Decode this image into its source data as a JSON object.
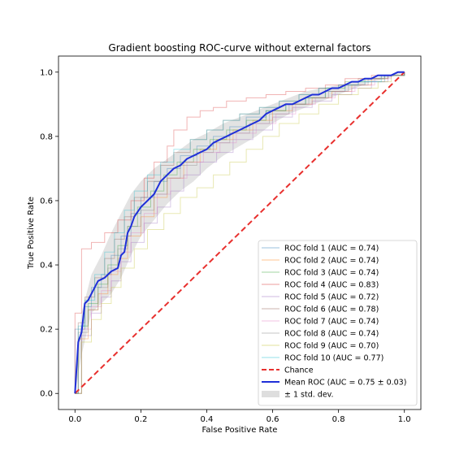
{
  "chart_data": {
    "type": "line",
    "title": "Gradient boosting ROC-curve without external factors",
    "xlabel": "False Positive Rate",
    "ylabel": "True Positive Rate",
    "xlim": [
      -0.05,
      1.05
    ],
    "ylim": [
      -0.05,
      1.05
    ],
    "xticks": [
      "0.0",
      "0.2",
      "0.4",
      "0.6",
      "0.8",
      "1.0"
    ],
    "yticks": [
      "0.0",
      "0.2",
      "0.4",
      "0.6",
      "0.8",
      "1.0"
    ],
    "grid": false,
    "legend_position": "lower-right",
    "folds": [
      {
        "name": "ROC fold 1 (AUC = 0.74)",
        "color": "#1f77b4",
        "points": [
          [
            0,
            0
          ],
          [
            0,
            0.2
          ],
          [
            0.03,
            0.27
          ],
          [
            0.05,
            0.33
          ],
          [
            0.08,
            0.37
          ],
          [
            0.11,
            0.43
          ],
          [
            0.14,
            0.49
          ],
          [
            0.17,
            0.56
          ],
          [
            0.2,
            0.61
          ],
          [
            0.24,
            0.66
          ],
          [
            0.28,
            0.7
          ],
          [
            0.32,
            0.74
          ],
          [
            0.37,
            0.77
          ],
          [
            0.42,
            0.8
          ],
          [
            0.47,
            0.83
          ],
          [
            0.52,
            0.86
          ],
          [
            0.58,
            0.88
          ],
          [
            0.64,
            0.9
          ],
          [
            0.7,
            0.92
          ],
          [
            0.76,
            0.94
          ],
          [
            0.82,
            0.96
          ],
          [
            0.88,
            0.97
          ],
          [
            0.94,
            0.99
          ],
          [
            1,
            1
          ]
        ]
      },
      {
        "name": "ROC fold 2 (AUC = 0.74)",
        "color": "#ff7f0e",
        "points": [
          [
            0,
            0
          ],
          [
            0.01,
            0.17
          ],
          [
            0.04,
            0.26
          ],
          [
            0.07,
            0.31
          ],
          [
            0.1,
            0.37
          ],
          [
            0.13,
            0.42
          ],
          [
            0.16,
            0.49
          ],
          [
            0.2,
            0.55
          ],
          [
            0.24,
            0.61
          ],
          [
            0.28,
            0.67
          ],
          [
            0.33,
            0.72
          ],
          [
            0.38,
            0.76
          ],
          [
            0.43,
            0.79
          ],
          [
            0.48,
            0.82
          ],
          [
            0.54,
            0.85
          ],
          [
            0.6,
            0.88
          ],
          [
            0.66,
            0.9
          ],
          [
            0.72,
            0.92
          ],
          [
            0.78,
            0.94
          ],
          [
            0.84,
            0.96
          ],
          [
            0.9,
            0.98
          ],
          [
            0.95,
            0.99
          ],
          [
            1,
            1
          ]
        ]
      },
      {
        "name": "ROC fold 3 (AUC = 0.74)",
        "color": "#2ca02c",
        "points": [
          [
            0,
            0
          ],
          [
            0.02,
            0.21
          ],
          [
            0.04,
            0.28
          ],
          [
            0.07,
            0.34
          ],
          [
            0.1,
            0.4
          ],
          [
            0.13,
            0.46
          ],
          [
            0.16,
            0.52
          ],
          [
            0.19,
            0.58
          ],
          [
            0.23,
            0.63
          ],
          [
            0.27,
            0.68
          ],
          [
            0.31,
            0.72
          ],
          [
            0.36,
            0.76
          ],
          [
            0.41,
            0.79
          ],
          [
            0.46,
            0.82
          ],
          [
            0.52,
            0.85
          ],
          [
            0.58,
            0.88
          ],
          [
            0.64,
            0.9
          ],
          [
            0.7,
            0.92
          ],
          [
            0.76,
            0.95
          ],
          [
            0.82,
            0.97
          ],
          [
            0.88,
            0.98
          ],
          [
            0.94,
            0.99
          ],
          [
            1,
            1
          ]
        ]
      },
      {
        "name": "ROC fold 4 (AUC = 0.83)",
        "color": "#d62728",
        "points": [
          [
            0,
            0
          ],
          [
            0,
            0.25
          ],
          [
            0.02,
            0.45
          ],
          [
            0.05,
            0.47
          ],
          [
            0.09,
            0.5
          ],
          [
            0.13,
            0.54
          ],
          [
            0.17,
            0.6
          ],
          [
            0.21,
            0.67
          ],
          [
            0.24,
            0.72
          ],
          [
            0.28,
            0.77
          ],
          [
            0.3,
            0.82
          ],
          [
            0.34,
            0.86
          ],
          [
            0.38,
            0.88
          ],
          [
            0.42,
            0.89
          ],
          [
            0.46,
            0.91
          ],
          [
            0.52,
            0.92
          ],
          [
            0.58,
            0.93
          ],
          [
            0.64,
            0.94
          ],
          [
            0.7,
            0.95
          ],
          [
            0.76,
            0.96
          ],
          [
            0.82,
            0.98
          ],
          [
            0.9,
            0.99
          ],
          [
            1,
            1
          ]
        ]
      },
      {
        "name": "ROC fold 5 (AUC = 0.72)",
        "color": "#9467bd",
        "points": [
          [
            0,
            0
          ],
          [
            0.02,
            0.18
          ],
          [
            0.05,
            0.25
          ],
          [
            0.08,
            0.3
          ],
          [
            0.11,
            0.35
          ],
          [
            0.14,
            0.41
          ],
          [
            0.17,
            0.47
          ],
          [
            0.21,
            0.53
          ],
          [
            0.25,
            0.58
          ],
          [
            0.29,
            0.63
          ],
          [
            0.33,
            0.68
          ],
          [
            0.38,
            0.72
          ],
          [
            0.43,
            0.75
          ],
          [
            0.48,
            0.79
          ],
          [
            0.54,
            0.82
          ],
          [
            0.6,
            0.86
          ],
          [
            0.66,
            0.89
          ],
          [
            0.72,
            0.91
          ],
          [
            0.78,
            0.93
          ],
          [
            0.84,
            0.95
          ],
          [
            0.9,
            0.97
          ],
          [
            0.95,
            0.99
          ],
          [
            1,
            1
          ]
        ]
      },
      {
        "name": "ROC fold 6 (AUC = 0.78)",
        "color": "#8c564b",
        "points": [
          [
            0,
            0
          ],
          [
            0.01,
            0.22
          ],
          [
            0.03,
            0.3
          ],
          [
            0.06,
            0.36
          ],
          [
            0.09,
            0.42
          ],
          [
            0.12,
            0.48
          ],
          [
            0.15,
            0.55
          ],
          [
            0.18,
            0.61
          ],
          [
            0.22,
            0.66
          ],
          [
            0.26,
            0.71
          ],
          [
            0.3,
            0.75
          ],
          [
            0.35,
            0.79
          ],
          [
            0.4,
            0.82
          ],
          [
            0.45,
            0.85
          ],
          [
            0.5,
            0.87
          ],
          [
            0.56,
            0.89
          ],
          [
            0.62,
            0.91
          ],
          [
            0.68,
            0.93
          ],
          [
            0.74,
            0.95
          ],
          [
            0.8,
            0.96
          ],
          [
            0.86,
            0.98
          ],
          [
            0.93,
            0.99
          ],
          [
            1,
            1
          ]
        ]
      },
      {
        "name": "ROC fold 7 (AUC = 0.74)",
        "color": "#e377c2",
        "points": [
          [
            0,
            0
          ],
          [
            0.02,
            0.2
          ],
          [
            0.05,
            0.27
          ],
          [
            0.08,
            0.32
          ],
          [
            0.11,
            0.38
          ],
          [
            0.14,
            0.44
          ],
          [
            0.17,
            0.5
          ],
          [
            0.21,
            0.56
          ],
          [
            0.25,
            0.62
          ],
          [
            0.29,
            0.67
          ],
          [
            0.34,
            0.72
          ],
          [
            0.39,
            0.75
          ],
          [
            0.44,
            0.78
          ],
          [
            0.49,
            0.81
          ],
          [
            0.55,
            0.84
          ],
          [
            0.61,
            0.87
          ],
          [
            0.67,
            0.9
          ],
          [
            0.73,
            0.92
          ],
          [
            0.79,
            0.94
          ],
          [
            0.85,
            0.96
          ],
          [
            0.91,
            0.98
          ],
          [
            0.96,
            0.99
          ],
          [
            1,
            1
          ]
        ]
      },
      {
        "name": "ROC fold 8 (AUC = 0.74)",
        "color": "#7f7f7f",
        "points": [
          [
            0,
            0
          ],
          [
            0.01,
            0.19
          ],
          [
            0.04,
            0.26
          ],
          [
            0.07,
            0.33
          ],
          [
            0.1,
            0.39
          ],
          [
            0.13,
            0.45
          ],
          [
            0.16,
            0.52
          ],
          [
            0.2,
            0.57
          ],
          [
            0.24,
            0.62
          ],
          [
            0.28,
            0.67
          ],
          [
            0.32,
            0.71
          ],
          [
            0.37,
            0.75
          ],
          [
            0.42,
            0.78
          ],
          [
            0.47,
            0.81
          ],
          [
            0.53,
            0.84
          ],
          [
            0.59,
            0.87
          ],
          [
            0.65,
            0.9
          ],
          [
            0.71,
            0.92
          ],
          [
            0.77,
            0.94
          ],
          [
            0.83,
            0.96
          ],
          [
            0.89,
            0.98
          ],
          [
            0.95,
            0.99
          ],
          [
            1,
            1
          ]
        ]
      },
      {
        "name": "ROC fold 9 (AUC = 0.70)",
        "color": "#bcbd22",
        "points": [
          [
            0,
            0
          ],
          [
            0.02,
            0.16
          ],
          [
            0.05,
            0.23
          ],
          [
            0.08,
            0.28
          ],
          [
            0.11,
            0.33
          ],
          [
            0.14,
            0.39
          ],
          [
            0.18,
            0.45
          ],
          [
            0.22,
            0.51
          ],
          [
            0.27,
            0.56
          ],
          [
            0.32,
            0.61
          ],
          [
            0.37,
            0.64
          ],
          [
            0.42,
            0.68
          ],
          [
            0.47,
            0.72
          ],
          [
            0.52,
            0.76
          ],
          [
            0.57,
            0.8
          ],
          [
            0.62,
            0.84
          ],
          [
            0.68,
            0.87
          ],
          [
            0.74,
            0.9
          ],
          [
            0.8,
            0.93
          ],
          [
            0.86,
            0.95
          ],
          [
            0.92,
            0.97
          ],
          [
            0.96,
            0.99
          ],
          [
            1,
            1
          ]
        ]
      },
      {
        "name": "ROC fold 10 (AUC = 0.77)",
        "color": "#17becf",
        "points": [
          [
            0,
            0
          ],
          [
            0.01,
            0.21
          ],
          [
            0.03,
            0.29
          ],
          [
            0.06,
            0.37
          ],
          [
            0.09,
            0.44
          ],
          [
            0.12,
            0.5
          ],
          [
            0.15,
            0.57
          ],
          [
            0.18,
            0.63
          ],
          [
            0.22,
            0.68
          ],
          [
            0.26,
            0.72
          ],
          [
            0.3,
            0.76
          ],
          [
            0.35,
            0.79
          ],
          [
            0.4,
            0.82
          ],
          [
            0.45,
            0.85
          ],
          [
            0.5,
            0.87
          ],
          [
            0.56,
            0.89
          ],
          [
            0.62,
            0.91
          ],
          [
            0.68,
            0.93
          ],
          [
            0.74,
            0.95
          ],
          [
            0.8,
            0.96
          ],
          [
            0.86,
            0.97
          ],
          [
            0.93,
            0.99
          ],
          [
            1,
            1
          ]
        ]
      }
    ],
    "chance": {
      "name": "Chance",
      "color": "#e8302e",
      "points": [
        [
          0,
          0
        ],
        [
          1,
          1
        ]
      ]
    },
    "mean_roc": {
      "name": "Mean ROC (AUC = 0.75 ± 0.03)",
      "color": "#1f2fd8",
      "points": [
        [
          0,
          0
        ],
        [
          0.01,
          0.16
        ],
        [
          0.02,
          0.19
        ],
        [
          0.03,
          0.28
        ],
        [
          0.04,
          0.29
        ],
        [
          0.05,
          0.31
        ],
        [
          0.07,
          0.35
        ],
        [
          0.09,
          0.36
        ],
        [
          0.11,
          0.38
        ],
        [
          0.13,
          0.39
        ],
        [
          0.14,
          0.43
        ],
        [
          0.15,
          0.44
        ],
        [
          0.16,
          0.5
        ],
        [
          0.17,
          0.52
        ],
        [
          0.18,
          0.55
        ],
        [
          0.2,
          0.58
        ],
        [
          0.22,
          0.6
        ],
        [
          0.24,
          0.62
        ],
        [
          0.26,
          0.66
        ],
        [
          0.28,
          0.68
        ],
        [
          0.3,
          0.7
        ],
        [
          0.32,
          0.71
        ],
        [
          0.34,
          0.73
        ],
        [
          0.36,
          0.74
        ],
        [
          0.38,
          0.75
        ],
        [
          0.4,
          0.76
        ],
        [
          0.42,
          0.78
        ],
        [
          0.44,
          0.79
        ],
        [
          0.46,
          0.8
        ],
        [
          0.48,
          0.81
        ],
        [
          0.5,
          0.82
        ],
        [
          0.52,
          0.83
        ],
        [
          0.54,
          0.84
        ],
        [
          0.56,
          0.85
        ],
        [
          0.58,
          0.87
        ],
        [
          0.6,
          0.88
        ],
        [
          0.62,
          0.89
        ],
        [
          0.64,
          0.9
        ],
        [
          0.66,
          0.9
        ],
        [
          0.68,
          0.91
        ],
        [
          0.7,
          0.92
        ],
        [
          0.72,
          0.93
        ],
        [
          0.74,
          0.93
        ],
        [
          0.76,
          0.94
        ],
        [
          0.78,
          0.95
        ],
        [
          0.8,
          0.95
        ],
        [
          0.82,
          0.96
        ],
        [
          0.84,
          0.97
        ],
        [
          0.86,
          0.97
        ],
        [
          0.88,
          0.98
        ],
        [
          0.9,
          0.98
        ],
        [
          0.92,
          0.99
        ],
        [
          0.94,
          0.99
        ],
        [
          0.96,
          0.99
        ],
        [
          0.98,
          1.0
        ],
        [
          1,
          1
        ]
      ]
    },
    "std_band": {
      "name": "± 1 std. dev.",
      "color": "#c8c8c8",
      "x": [
        0,
        0.02,
        0.05,
        0.08,
        0.11,
        0.14,
        0.17,
        0.2,
        0.24,
        0.28,
        0.32,
        0.36,
        0.4,
        0.45,
        0.5,
        0.55,
        0.6,
        0.65,
        0.7,
        0.75,
        0.8,
        0.85,
        0.9,
        0.95,
        1
      ],
      "upper": [
        0.02,
        0.25,
        0.37,
        0.43,
        0.5,
        0.56,
        0.62,
        0.66,
        0.7,
        0.73,
        0.76,
        0.79,
        0.81,
        0.84,
        0.86,
        0.88,
        0.9,
        0.92,
        0.94,
        0.95,
        0.96,
        0.97,
        0.98,
        0.99,
        1.0
      ],
      "lower": [
        0,
        0.12,
        0.25,
        0.28,
        0.31,
        0.36,
        0.43,
        0.49,
        0.54,
        0.59,
        0.63,
        0.66,
        0.7,
        0.74,
        0.77,
        0.8,
        0.84,
        0.87,
        0.89,
        0.91,
        0.93,
        0.95,
        0.97,
        0.98,
        1.0
      ]
    }
  }
}
